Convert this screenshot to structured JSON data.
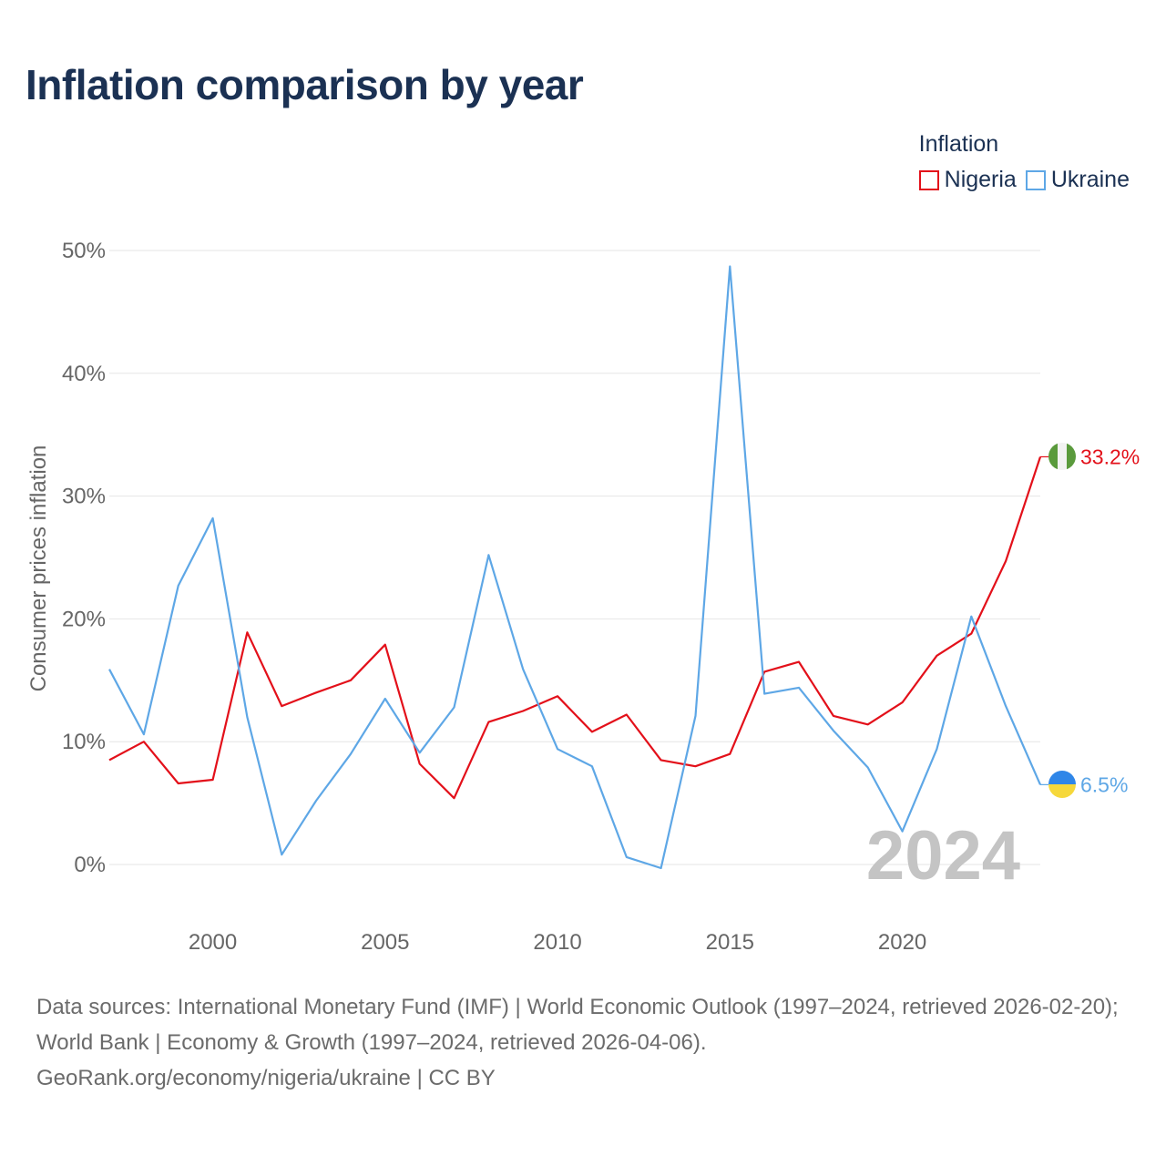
{
  "title": "Inflation comparison by year",
  "legend": {
    "title": "Inflation",
    "items": [
      {
        "name": "Nigeria",
        "color": "#e3101a"
      },
      {
        "name": "Ukraine",
        "color": "#5ea7e6"
      }
    ]
  },
  "source": {
    "line1": "Data sources: International Monetary Fund (IMF) | World Economic Outlook (1997–2024, retrieved 2026-02-20); World Bank | Economy & Growth (1997–2024, retrieved 2026-04-06).",
    "line2": "GeoRank.org/economy/nigeria/ukraine | CC BY"
  },
  "chart_data": {
    "type": "line",
    "title": "Inflation comparison by year",
    "xlabel": "",
    "ylabel": "Consumer prices inflation",
    "xlim": [
      1997,
      2024
    ],
    "ylim": [
      0,
      50
    ],
    "y_ticks": [
      0,
      10,
      20,
      30,
      40,
      50
    ],
    "y_tick_labels": [
      "0%",
      "10%",
      "20%",
      "30%",
      "40%",
      "50%"
    ],
    "x_ticks": [
      2000,
      2005,
      2010,
      2015,
      2020
    ],
    "x_tick_labels": [
      "2000",
      "2005",
      "2010",
      "2015",
      "2020"
    ],
    "grid": true,
    "legend_position": "top-right",
    "year_watermark": "2024",
    "x": [
      1997,
      1998,
      1999,
      2000,
      2001,
      2002,
      2003,
      2004,
      2005,
      2006,
      2007,
      2008,
      2009,
      2010,
      2011,
      2012,
      2013,
      2014,
      2015,
      2016,
      2017,
      2018,
      2019,
      2020,
      2021,
      2022,
      2023,
      2024
    ],
    "series": [
      {
        "name": "Nigeria",
        "color": "#e3101a",
        "end_label": "33.2%",
        "values": [
          8.5,
          10.0,
          6.6,
          6.9,
          18.9,
          12.9,
          14.0,
          15.0,
          17.9,
          8.2,
          5.4,
          11.6,
          12.5,
          13.7,
          10.8,
          12.2,
          8.5,
          8.0,
          9.0,
          15.7,
          16.5,
          12.1,
          11.4,
          13.2,
          17.0,
          18.8,
          24.7,
          33.2
        ]
      },
      {
        "name": "Ukraine",
        "color": "#5ea7e6",
        "end_label": "6.5%",
        "values": [
          15.9,
          10.6,
          22.7,
          28.2,
          12.0,
          0.8,
          5.2,
          9.0,
          13.5,
          9.1,
          12.8,
          25.2,
          15.9,
          9.4,
          8.0,
          0.6,
          -0.3,
          12.1,
          48.7,
          13.9,
          14.4,
          10.9,
          7.9,
          2.7,
          9.4,
          20.2,
          12.9,
          6.5
        ]
      }
    ]
  }
}
